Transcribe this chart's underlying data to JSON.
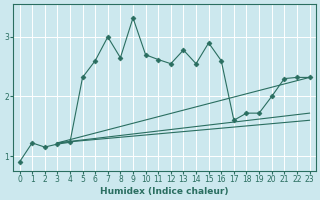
{
  "xlabel": "Humidex (Indice chaleur)",
  "background_color": "#cce8ee",
  "grid_color": "#ffffff",
  "line_color": "#2a6e60",
  "xlim": [
    -0.5,
    23.5
  ],
  "ylim": [
    0.75,
    3.55
  ],
  "yticks": [
    1,
    2,
    3
  ],
  "xticks": [
    0,
    1,
    2,
    3,
    4,
    5,
    6,
    7,
    8,
    9,
    10,
    11,
    12,
    13,
    14,
    15,
    16,
    17,
    18,
    19,
    20,
    21,
    22,
    23
  ],
  "line1_x": [
    0,
    1,
    2,
    3,
    4,
    5,
    6,
    7,
    8,
    9,
    10,
    11,
    12,
    13,
    14,
    15,
    16,
    17,
    18,
    19,
    20,
    21,
    22,
    23
  ],
  "line1_y": [
    0.9,
    1.22,
    1.15,
    1.2,
    1.23,
    2.32,
    2.6,
    3.0,
    2.65,
    3.32,
    2.7,
    2.62,
    2.55,
    2.78,
    2.55,
    2.9,
    2.6,
    1.6,
    1.72,
    1.72,
    2.0,
    2.3,
    2.32,
    2.32
  ],
  "line2_x": [
    3,
    23
  ],
  "line2_y": [
    1.22,
    2.32
  ],
  "line3_x": [
    3,
    23
  ],
  "line3_y": [
    1.22,
    1.72
  ],
  "line4_x": [
    3,
    23
  ],
  "line4_y": [
    1.22,
    1.6
  ]
}
